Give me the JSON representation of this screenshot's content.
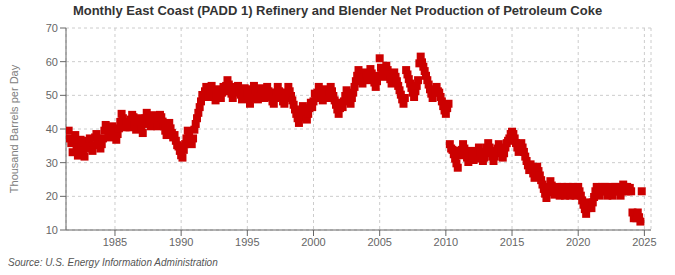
{
  "chart_data": {
    "type": "scatter",
    "title": "Monthly East Coast (PADD 1) Refinery and Blender Net Production of Petroleum Coke",
    "ylabel": "Thousand Barrels per Day",
    "annotation": "Source: U.S. Energy Information Administration",
    "color": "#cc0000",
    "marker": "square",
    "grid": true,
    "xlim": [
      1981.3,
      2025.5
    ],
    "xticks": [
      1985,
      1990,
      1995,
      2000,
      2005,
      2010,
      2015,
      2020,
      2025
    ],
    "ylim": [
      10,
      70
    ],
    "yticks": [
      10,
      20,
      30,
      40,
      50,
      60,
      70
    ],
    "x": [
      1981.5,
      1981.6,
      1981.7,
      1981.8,
      1981.9,
      1982.0,
      1982.1,
      1982.2,
      1982.3,
      1982.4,
      1982.5,
      1982.6,
      1982.7,
      1982.8,
      1982.9,
      1983.0,
      1983.1,
      1983.2,
      1983.3,
      1983.4,
      1983.5,
      1983.6,
      1983.7,
      1983.8,
      1983.9,
      1984.0,
      1984.1,
      1984.2,
      1984.3,
      1984.4,
      1984.5,
      1984.6,
      1984.7,
      1984.8,
      1984.9,
      1985.0,
      1985.1,
      1985.2,
      1985.3,
      1985.4,
      1985.5,
      1985.6,
      1985.7,
      1985.8,
      1985.9,
      1986.0,
      1986.1,
      1986.2,
      1986.3,
      1986.4,
      1986.5,
      1986.6,
      1986.7,
      1986.8,
      1986.9,
      1987.0,
      1987.1,
      1987.2,
      1987.3,
      1987.4,
      1987.5,
      1987.6,
      1987.7,
      1987.8,
      1987.9,
      1988.0,
      1988.1,
      1988.2,
      1988.3,
      1988.4,
      1988.5,
      1988.6,
      1988.7,
      1988.8,
      1988.9,
      1989.0,
      1989.1,
      1989.2,
      1989.3,
      1989.4,
      1989.5,
      1989.6,
      1989.7,
      1989.8,
      1989.9,
      1990.0,
      1990.1,
      1990.2,
      1990.3,
      1990.4,
      1990.5,
      1990.6,
      1990.7,
      1990.8,
      1990.9,
      1991.0,
      1991.1,
      1991.2,
      1991.3,
      1991.4,
      1991.5,
      1991.6,
      1991.7,
      1991.8,
      1991.9,
      1992.0,
      1992.1,
      1992.2,
      1992.3,
      1992.4,
      1992.5,
      1992.6,
      1992.7,
      1992.8,
      1992.9,
      1993.0,
      1993.1,
      1993.2,
      1993.3,
      1993.4,
      1993.5,
      1993.6,
      1993.7,
      1993.8,
      1993.9,
      1994.0,
      1994.1,
      1994.2,
      1994.3,
      1994.4,
      1994.5,
      1994.6,
      1994.7,
      1994.8,
      1994.9,
      1995.0,
      1995.1,
      1995.2,
      1995.3,
      1995.4,
      1995.5,
      1995.6,
      1995.7,
      1995.8,
      1995.9,
      1996.0,
      1996.1,
      1996.2,
      1996.3,
      1996.4,
      1996.5,
      1996.6,
      1996.7,
      1996.8,
      1996.9,
      1997.0,
      1997.1,
      1997.2,
      1997.3,
      1997.4,
      1997.5,
      1997.6,
      1997.7,
      1997.8,
      1997.9,
      1998.0,
      1998.1,
      1998.2,
      1998.3,
      1998.4,
      1998.5,
      1998.6,
      1998.7,
      1998.8,
      1998.9,
      1999.0,
      1999.1,
      1999.2,
      1999.3,
      1999.4,
      1999.5,
      1999.6,
      1999.7,
      1999.8,
      1999.9,
      2000.0,
      2000.1,
      2000.2,
      2000.3,
      2000.4,
      2000.5,
      2000.6,
      2000.7,
      2000.8,
      2000.9,
      2001.0,
      2001.1,
      2001.2,
      2001.3,
      2001.4,
      2001.5,
      2001.6,
      2001.7,
      2001.8,
      2001.9,
      2002.0,
      2002.1,
      2002.2,
      2002.3,
      2002.4,
      2002.5,
      2002.6,
      2002.7,
      2002.8,
      2002.9,
      2003.0,
      2003.1,
      2003.2,
      2003.3,
      2003.4,
      2003.5,
      2003.6,
      2003.7,
      2003.8,
      2003.9,
      2004.0,
      2004.1,
      2004.2,
      2004.3,
      2004.4,
      2004.5,
      2004.6,
      2004.7,
      2004.8,
      2004.9,
      2005.0,
      2005.1,
      2005.2,
      2005.3,
      2005.4,
      2005.5,
      2005.6,
      2005.7,
      2005.8,
      2005.9,
      2006.0,
      2006.1,
      2006.2,
      2006.3,
      2006.4,
      2006.5,
      2006.6,
      2006.7,
      2006.8,
      2006.9,
      2007.0,
      2007.1,
      2007.2,
      2007.3,
      2007.4,
      2007.5,
      2007.6,
      2007.7,
      2007.8,
      2007.9,
      2008.0,
      2008.1,
      2008.2,
      2008.3,
      2008.4,
      2008.5,
      2008.6,
      2008.7,
      2008.8,
      2008.9,
      2009.0,
      2009.1,
      2009.2,
      2009.3,
      2009.4,
      2009.5,
      2009.6,
      2009.7,
      2009.8,
      2009.9,
      2010.0,
      2010.1,
      2010.2,
      2010.3,
      2010.4,
      2010.5,
      2010.6,
      2010.7,
      2010.8,
      2010.9,
      2011.0,
      2011.1,
      2011.2,
      2011.3,
      2011.4,
      2011.5,
      2011.6,
      2011.7,
      2011.8,
      2011.9,
      2012.0,
      2012.1,
      2012.2,
      2012.3,
      2012.4,
      2012.5,
      2012.6,
      2012.7,
      2012.8,
      2012.9,
      2013.0,
      2013.1,
      2013.2,
      2013.3,
      2013.4,
      2013.5,
      2013.6,
      2013.7,
      2013.8,
      2013.9,
      2014.0,
      2014.1,
      2014.2,
      2014.3,
      2014.4,
      2014.5,
      2014.6,
      2014.7,
      2014.8,
      2014.9,
      2015.0,
      2015.1,
      2015.2,
      2015.3,
      2015.4,
      2015.5,
      2015.6,
      2015.7,
      2015.8,
      2015.9,
      2016.0,
      2016.1,
      2016.2,
      2016.3,
      2016.4,
      2016.5,
      2016.6,
      2016.7,
      2016.8,
      2016.9,
      2017.0,
      2017.1,
      2017.2,
      2017.3,
      2017.4,
      2017.5,
      2017.6,
      2017.7,
      2017.8,
      2017.9,
      2018.0,
      2018.1,
      2018.2,
      2018.3,
      2018.4,
      2018.5,
      2018.6,
      2018.7,
      2018.8,
      2018.9,
      2019.0,
      2019.1,
      2019.2,
      2019.3,
      2019.4,
      2019.5,
      2019.6,
      2019.7,
      2019.8,
      2019.9,
      2020.0,
      2020.1,
      2020.2,
      2020.3,
      2020.4,
      2020.5,
      2020.6,
      2020.7,
      2020.8,
      2020.9,
      2021.0,
      2021.1,
      2021.2,
      2021.3,
      2021.4,
      2021.5,
      2021.6,
      2021.7,
      2021.8,
      2021.9,
      2022.0,
      2022.1,
      2022.2,
      2022.3,
      2022.4,
      2022.5,
      2022.6,
      2022.7,
      2022.8,
      2022.9,
      2023.0,
      2023.1,
      2023.2,
      2023.3,
      2023.4,
      2023.5,
      2023.6,
      2023.7,
      2023.8,
      2023.9,
      2024.0,
      2024.1,
      2024.2,
      2024.3,
      2024.4,
      2024.5,
      2024.6,
      2024.7,
      2024.8
    ],
    "values": [
      39.5,
      37.2,
      35.8,
      33.1,
      36.5,
      38.2,
      34.5,
      32.1,
      33.8,
      36.8,
      35.2,
      33.5,
      31.8,
      34.2,
      36.5,
      35.8,
      37.2,
      34.8,
      33.5,
      35.2,
      37.5,
      38.5,
      37.1,
      35.8,
      34.2,
      35.5,
      37.2,
      39.5,
      41.2,
      40.1,
      38.8,
      37.5,
      39.2,
      40.8,
      39.5,
      38.2,
      36.8,
      38.5,
      40.2,
      42.1,
      44.5,
      43.2,
      41.8,
      40.5,
      42.1,
      41.8,
      40.5,
      42.8,
      44.2,
      43.5,
      41.2,
      39.8,
      41.5,
      43.2,
      42.5,
      40.2,
      38.8,
      41.5,
      43.2,
      44.8,
      43.5,
      42.1,
      40.8,
      42.5,
      44.1,
      43.8,
      42.2,
      40.8,
      42.5,
      44.2,
      43.5,
      42.2,
      40.8,
      39.5,
      38.2,
      40.5,
      41.8,
      40.2,
      38.8,
      37.5,
      38.2,
      36.5,
      35.2,
      34.8,
      33.5,
      32.2,
      31.5,
      33.8,
      35.5,
      37.2,
      39.5,
      38.2,
      36.8,
      35.5,
      37.2,
      39.8,
      41.5,
      43.2,
      44.8,
      46.5,
      48.2,
      50.1,
      49.8,
      51.2,
      52.5,
      50.8,
      49.5,
      51.2,
      52.8,
      51.5,
      50.2,
      48.5,
      50.2,
      51.8,
      50.5,
      49.2,
      50.8,
      52.5,
      51.2,
      52.8,
      54.5,
      53.2,
      51.8,
      50.5,
      49.2,
      50.8,
      52.5,
      51.2,
      52.8,
      51.5,
      50.2,
      48.8,
      50.5,
      52.1,
      51.8,
      50.5,
      49.2,
      47.5,
      49.2,
      51.5,
      52.8,
      51.5,
      50.2,
      48.8,
      50.5,
      52.1,
      51.8,
      50.5,
      49.2,
      50.8,
      52.5,
      51.2,
      50.8,
      49.5,
      48.2,
      47.5,
      49.2,
      50.8,
      52.5,
      51.2,
      50.8,
      49.5,
      48.2,
      47.5,
      49.2,
      50.8,
      52.5,
      51.2,
      49.8,
      48.5,
      47.2,
      45.8,
      44.5,
      43.2,
      41.8,
      43.5,
      45.2,
      46.8,
      45.5,
      44.2,
      42.8,
      44.5,
      46.2,
      47.8,
      46.5,
      48.2,
      50.5,
      49.2,
      50.8,
      52.5,
      51.2,
      49.8,
      48.5,
      50.2,
      51.8,
      50.5,
      49.2,
      50.8,
      52.5,
      51.2,
      49.8,
      48.5,
      47.2,
      45.8,
      44.5,
      46.2,
      47.8,
      46.5,
      48.2,
      49.8,
      51.5,
      50.2,
      48.8,
      47.5,
      49.2,
      50.8,
      52.5,
      54.2,
      55.8,
      57.5,
      56.2,
      54.8,
      53.5,
      55.2,
      56.8,
      55.8,
      54.5,
      56.2,
      57.8,
      56.5,
      55.2,
      53.8,
      52.5,
      54.2,
      55.8,
      61.0,
      58.2,
      56.8,
      55.5,
      57.2,
      58.8,
      57.5,
      56.2,
      54.8,
      53.5,
      55.2,
      56.8,
      55.5,
      54.2,
      52.8,
      51.5,
      50.2,
      48.8,
      47.5,
      49.2,
      57.5,
      56.2,
      54.8,
      53.5,
      52.2,
      50.8,
      49.5,
      51.2,
      52.8,
      54.5,
      59.5,
      61.5,
      59.8,
      58.5,
      57.2,
      55.8,
      54.5,
      53.2,
      51.8,
      50.5,
      49.2,
      51.2,
      50.8,
      52.5,
      51.2,
      50.8,
      49.5,
      48.2,
      46.8,
      45.5,
      44.5,
      46.2,
      47.5,
      35.5,
      34.2,
      33.8,
      32.5,
      31.2,
      29.8,
      28.5,
      33.5,
      32.2,
      33.8,
      35.5,
      34.2,
      32.8,
      31.5,
      30.2,
      31.8,
      33.5,
      32.2,
      30.8,
      32.5,
      31.2,
      32.8,
      34.5,
      33.2,
      31.8,
      30.5,
      31.5,
      32.8,
      34.5,
      35.8,
      34.5,
      33.2,
      31.8,
      30.5,
      31.8,
      33.5,
      34.2,
      35.5,
      34.2,
      32.8,
      31.5,
      32.8,
      34.5,
      35.8,
      36.5,
      37.2,
      38.5,
      39.2,
      38.5,
      37.2,
      35.8,
      34.5,
      33.2,
      34.5,
      35.8,
      34.5,
      33.2,
      31.8,
      30.5,
      29.2,
      27.8,
      29.5,
      28.2,
      26.8,
      25.5,
      27.2,
      28.8,
      27.5,
      26.2,
      24.8,
      23.5,
      22.2,
      20.8,
      19.5,
      21.2,
      22.8,
      24.5,
      23.2,
      21.8,
      20.5,
      21.5,
      22.8,
      21.5,
      20.2,
      21.5,
      22.8,
      21.5,
      20.2,
      21.5,
      22.8,
      21.5,
      20.2,
      21.5,
      22.8,
      21.5,
      20.2,
      21.5,
      22.8,
      21.5,
      20.2,
      18.8,
      17.5,
      16.2,
      14.8,
      16.5,
      18.2,
      17.5,
      16.5,
      18.2,
      19.8,
      21.5,
      22.8,
      21.5,
      20.2,
      21.5,
      22.8,
      21.5,
      22.8,
      21.5,
      20.2,
      21.5,
      22.8,
      21.5,
      20.2,
      21.5,
      22.8,
      21.5,
      22.8,
      21.5,
      20.2,
      21.5,
      23.5,
      22.8,
      21.5,
      22.8,
      21.5,
      22.5,
      21.5,
      15.2,
      13.5,
      14.8,
      13.5,
      15.2,
      13.8,
      12.5,
      21.5
    ]
  }
}
